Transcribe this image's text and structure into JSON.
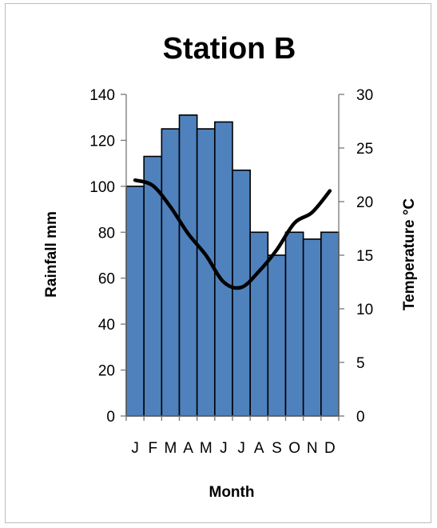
{
  "chart_data": {
    "type": "bar",
    "title": "Station B",
    "xlabel": "Month",
    "ylabel": "Rainfall mm",
    "y2label": "Temperature °C",
    "categories": [
      "J",
      "F",
      "M",
      "A",
      "M",
      "J",
      "J",
      "A",
      "S",
      "O",
      "N",
      "D"
    ],
    "ylim": [
      0,
      140
    ],
    "yticks": [
      0,
      20,
      40,
      60,
      80,
      100,
      120,
      140
    ],
    "y2lim": [
      0,
      30
    ],
    "y2ticks": [
      0,
      5,
      10,
      15,
      20,
      25,
      30
    ],
    "series": [
      {
        "type": "bar",
        "axis": "left",
        "values": [
          100,
          113,
          125,
          131,
          125,
          128,
          107,
          80,
          70,
          80,
          77,
          80
        ],
        "color": "#4f81bd"
      },
      {
        "type": "line",
        "axis": "right",
        "values": [
          22,
          21.5,
          19.5,
          17,
          15,
          12.5,
          12,
          13.5,
          15.5,
          18,
          19,
          21
        ],
        "color": "#000000"
      }
    ],
    "grid": false,
    "legend": "none"
  }
}
